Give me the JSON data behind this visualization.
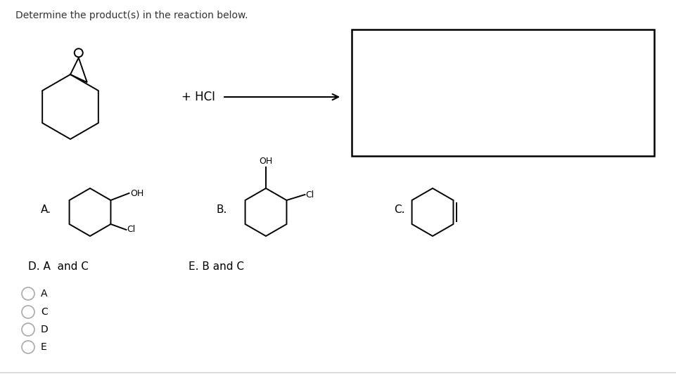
{
  "title": "Determine the product(s) in the reaction below.",
  "title_fontsize": 10,
  "title_color": "#333333",
  "bg_color": "#ffffff",
  "text_color": "#000000",
  "hci_text": "+ HCI",
  "choice_labels": {
    "D": "D. A  and C",
    "E": "E. B and C"
  },
  "radio_labels": [
    "A",
    "C",
    "D",
    "E"
  ],
  "bottom_line_color": "#cccccc"
}
